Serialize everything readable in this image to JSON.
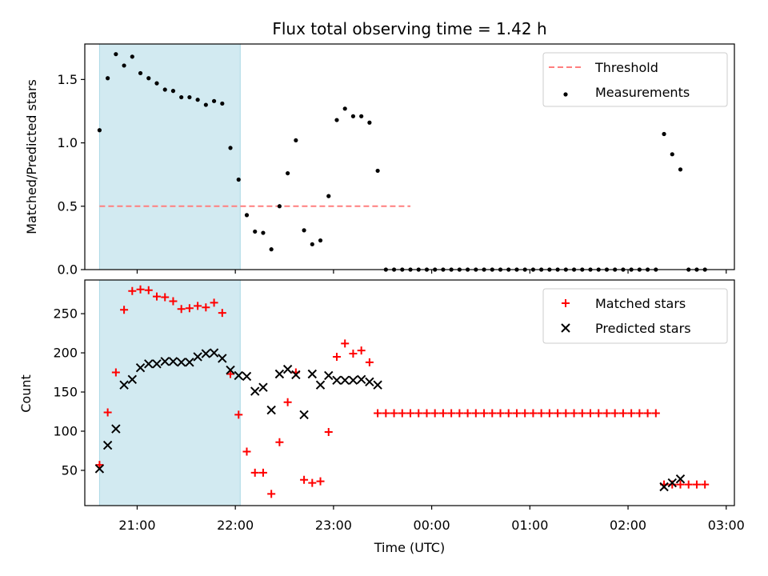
{
  "chart_data": [
    {
      "type": "scatter",
      "title": "Flux total observing time = 1.42 h",
      "ylabel": "Matched/Predicted stars",
      "xlabel": "",
      "xlim": [
        "20:28",
        "03:05"
      ],
      "ylim": [
        0,
        1.78
      ],
      "yticks": [
        0.0,
        0.5,
        1.0,
        1.5
      ],
      "yticklabels": [
        "0.0",
        "0.5",
        "1.0",
        "1.5"
      ],
      "xticks": [
        "21:00",
        "22:00",
        "23:00",
        "00:00",
        "01:00",
        "02:00",
        "03:00"
      ],
      "grid": false,
      "legend": "top-right",
      "colors": {
        "threshold": "#ff7f7f",
        "measurements": "#000000",
        "span": "#add8e6"
      },
      "shaded_span": [
        "20:37",
        "22:03"
      ],
      "threshold": {
        "name": "Threshold",
        "value": 0.5,
        "x_range": [
          "20:37",
          "23:47"
        ]
      },
      "series": [
        {
          "name": "Measurements",
          "x": [
            "20:37",
            "20:42",
            "20:47",
            "20:52",
            "20:57",
            "21:02",
            "21:07",
            "21:12",
            "21:17",
            "21:22",
            "21:27",
            "21:32",
            "21:37",
            "21:42",
            "21:47",
            "21:52",
            "21:57",
            "22:02",
            "22:07",
            "22:12",
            "22:17",
            "22:22",
            "22:27",
            "22:32",
            "22:37",
            "22:42",
            "22:47",
            "22:52",
            "22:57",
            "23:02",
            "23:07",
            "23:12",
            "23:17",
            "23:22",
            "23:27",
            "23:32",
            "23:37",
            "23:42",
            "23:47",
            "23:52",
            "23:57",
            "00:02",
            "00:07",
            "00:12",
            "00:17",
            "00:22",
            "00:27",
            "00:32",
            "00:37",
            "00:42",
            "00:47",
            "00:52",
            "00:57",
            "01:02",
            "01:07",
            "01:12",
            "01:17",
            "01:22",
            "01:27",
            "01:32",
            "01:37",
            "01:42",
            "01:47",
            "01:52",
            "01:57",
            "02:02",
            "02:07",
            "02:12",
            "02:17",
            "02:22",
            "02:27",
            "02:32",
            "02:37",
            "02:42",
            "02:47"
          ],
          "y": [
            1.1,
            1.51,
            1.7,
            1.61,
            1.68,
            1.55,
            1.51,
            1.47,
            1.42,
            1.41,
            1.36,
            1.36,
            1.34,
            1.3,
            1.33,
            1.31,
            0.96,
            0.71,
            0.43,
            0.3,
            0.29,
            0.16,
            0.5,
            0.76,
            1.02,
            0.31,
            0.2,
            0.23,
            0.58,
            1.18,
            1.27,
            1.21,
            1.21,
            1.16,
            0.78,
            0.0,
            0.0,
            0.0,
            0.0,
            0.0,
            0.0,
            0.0,
            0.0,
            0.0,
            0.0,
            0.0,
            0.0,
            0.0,
            0.0,
            0.0,
            0.0,
            0.0,
            0.0,
            0.0,
            0.0,
            0.0,
            0.0,
            0.0,
            0.0,
            0.0,
            0.0,
            0.0,
            0.0,
            0.0,
            0.0,
            0.0,
            0.0,
            0.0,
            0.0,
            1.07,
            0.91,
            0.79,
            0.0,
            0.0,
            0.0
          ]
        }
      ]
    },
    {
      "type": "scatter",
      "title": "",
      "ylabel": "Count",
      "xlabel": "Time (UTC)",
      "xlim": [
        "20:28",
        "03:05"
      ],
      "ylim": [
        5,
        293
      ],
      "yticks": [
        50,
        100,
        150,
        200,
        250
      ],
      "yticklabels": [
        "50",
        "100",
        "150",
        "200",
        "250"
      ],
      "xticks": [
        "21:00",
        "22:00",
        "23:00",
        "00:00",
        "01:00",
        "02:00",
        "03:00"
      ],
      "xticklabels": [
        "21:00",
        "22:00",
        "23:00",
        "00:00",
        "01:00",
        "02:00",
        "03:00"
      ],
      "grid": false,
      "legend": "top-right",
      "colors": {
        "matched": "#ff0000",
        "predicted": "#000000",
        "span": "#add8e6"
      },
      "shaded_span": [
        "20:37",
        "22:03"
      ],
      "series": [
        {
          "name": "Matched stars",
          "x": [
            "20:37",
            "20:42",
            "20:47",
            "20:52",
            "20:57",
            "21:02",
            "21:07",
            "21:12",
            "21:17",
            "21:22",
            "21:27",
            "21:32",
            "21:37",
            "21:42",
            "21:47",
            "21:52",
            "21:57",
            "22:02",
            "22:07",
            "22:12",
            "22:17",
            "22:22",
            "22:27",
            "22:32",
            "22:37",
            "22:42",
            "22:47",
            "22:52",
            "22:57",
            "23:02",
            "23:07",
            "23:12",
            "23:17",
            "23:22",
            "23:27",
            "23:32",
            "23:37",
            "23:42",
            "23:47",
            "23:52",
            "23:57",
            "00:02",
            "00:07",
            "00:12",
            "00:17",
            "00:22",
            "00:27",
            "00:32",
            "00:37",
            "00:42",
            "00:47",
            "00:52",
            "00:57",
            "01:02",
            "01:07",
            "01:12",
            "01:17",
            "01:22",
            "01:27",
            "01:32",
            "01:37",
            "01:42",
            "01:47",
            "01:52",
            "01:57",
            "02:02",
            "02:07",
            "02:12",
            "02:17",
            "02:22",
            "02:27",
            "02:32",
            "02:37",
            "02:42",
            "02:47"
          ],
          "y": [
            57,
            124,
            175,
            255,
            279,
            281,
            280,
            272,
            271,
            266,
            256,
            257,
            260,
            258,
            264,
            251,
            173,
            121,
            74,
            47,
            47,
            20,
            86,
            137,
            175,
            38,
            34,
            36,
            99,
            195,
            212,
            199,
            203,
            188,
            123,
            123,
            123,
            123,
            123,
            123,
            123,
            123,
            123,
            123,
            123,
            123,
            123,
            123,
            123,
            123,
            123,
            123,
            123,
            123,
            123,
            123,
            123,
            123,
            123,
            123,
            123,
            123,
            123,
            123,
            123,
            123,
            123,
            123,
            123,
            32,
            32,
            32,
            32,
            32,
            32
          ]
        },
        {
          "name": "Predicted stars",
          "x": [
            "20:37",
            "20:42",
            "20:47",
            "20:52",
            "20:57",
            "21:02",
            "21:07",
            "21:12",
            "21:17",
            "21:22",
            "21:27",
            "21:32",
            "21:37",
            "21:42",
            "21:47",
            "21:52",
            "21:57",
            "22:02",
            "22:07",
            "22:12",
            "22:17",
            "22:22",
            "22:27",
            "22:32",
            "22:37",
            "22:42",
            "22:47",
            "22:52",
            "22:57",
            "23:02",
            "23:07",
            "23:12",
            "23:17",
            "23:22",
            "23:27",
            "02:22",
            "02:27",
            "02:32"
          ],
          "y": [
            52,
            82,
            103,
            159,
            166,
            181,
            186,
            186,
            189,
            189,
            188,
            188,
            195,
            199,
            200,
            193,
            178,
            171,
            170,
            151,
            156,
            127,
            173,
            179,
            172,
            121,
            173,
            159,
            171,
            165,
            165,
            165,
            166,
            163,
            159,
            29,
            34,
            39
          ]
        }
      ]
    }
  ]
}
